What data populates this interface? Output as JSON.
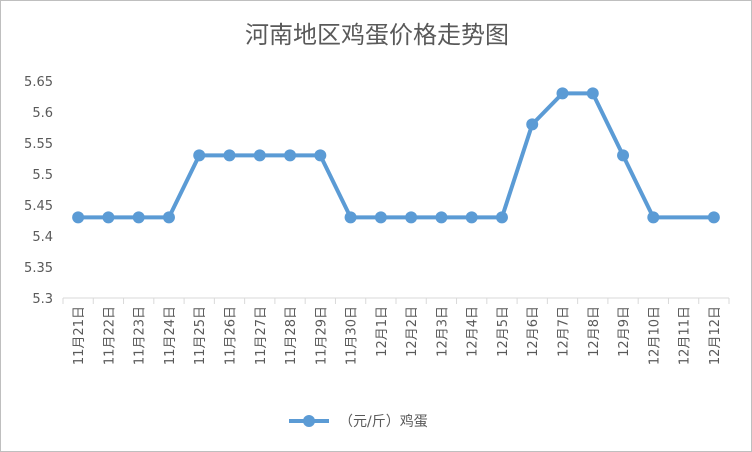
{
  "chart_data": {
    "type": "line",
    "title": "河南地区鸡蛋价格走势图",
    "categories": [
      "11月21日",
      "11月22日",
      "11月23日",
      "11月24日",
      "11月25日",
      "11月26日",
      "11月27日",
      "11月28日",
      "11月29日",
      "11月30日",
      "12月1日",
      "12月2日",
      "12月3日",
      "12月4日",
      "12月5日",
      "12月6日",
      "12月7日",
      "12月8日",
      "12月9日",
      "12月10日",
      "12月11日",
      "12月12日"
    ],
    "series": [
      {
        "name": "（元/斤）鸡蛋",
        "values": [
          5.43,
          5.43,
          5.43,
          5.43,
          5.53,
          5.53,
          5.53,
          5.53,
          5.53,
          5.43,
          5.43,
          5.43,
          5.43,
          5.43,
          5.43,
          5.58,
          5.63,
          5.63,
          5.53,
          5.43,
          null,
          5.43
        ],
        "color": "#5b9bd5"
      }
    ],
    "ylim": [
      5.3,
      5.65
    ],
    "yticks": [
      "5.3",
      "5.35",
      "5.4",
      "5.45",
      "5.5",
      "5.55",
      "5.6",
      "5.65"
    ],
    "grid": false,
    "legend_position": "bottom"
  }
}
